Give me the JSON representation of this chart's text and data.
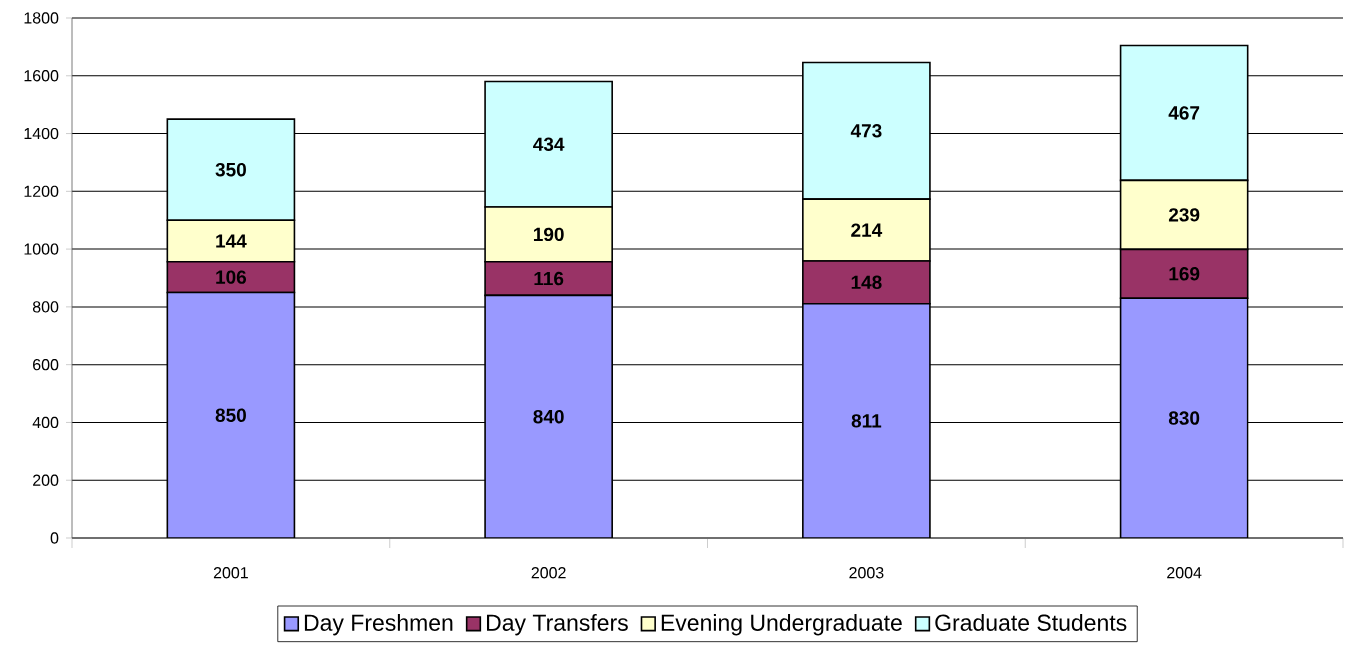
{
  "chart_data": {
    "type": "bar",
    "stacked": true,
    "categories": [
      "2001",
      "2002",
      "2003",
      "2004"
    ],
    "series": [
      {
        "name": "Day Freshmen",
        "color": "#9999ff",
        "values": [
          850,
          840,
          811,
          830
        ]
      },
      {
        "name": "Day Transfers",
        "color": "#993366",
        "values": [
          106,
          116,
          148,
          169
        ]
      },
      {
        "name": "Evening Undergraduate",
        "color": "#ffffcc",
        "values": [
          144,
          190,
          214,
          239
        ]
      },
      {
        "name": "Graduate Students",
        "color": "#ccffff",
        "values": [
          350,
          434,
          473,
          467
        ]
      }
    ],
    "ylim": [
      0,
      1800
    ],
    "yticks": [
      0,
      200,
      400,
      600,
      800,
      1000,
      1200,
      1400,
      1600,
      1800
    ],
    "grid": "y",
    "legend": "bottom",
    "data_labels": true
  }
}
